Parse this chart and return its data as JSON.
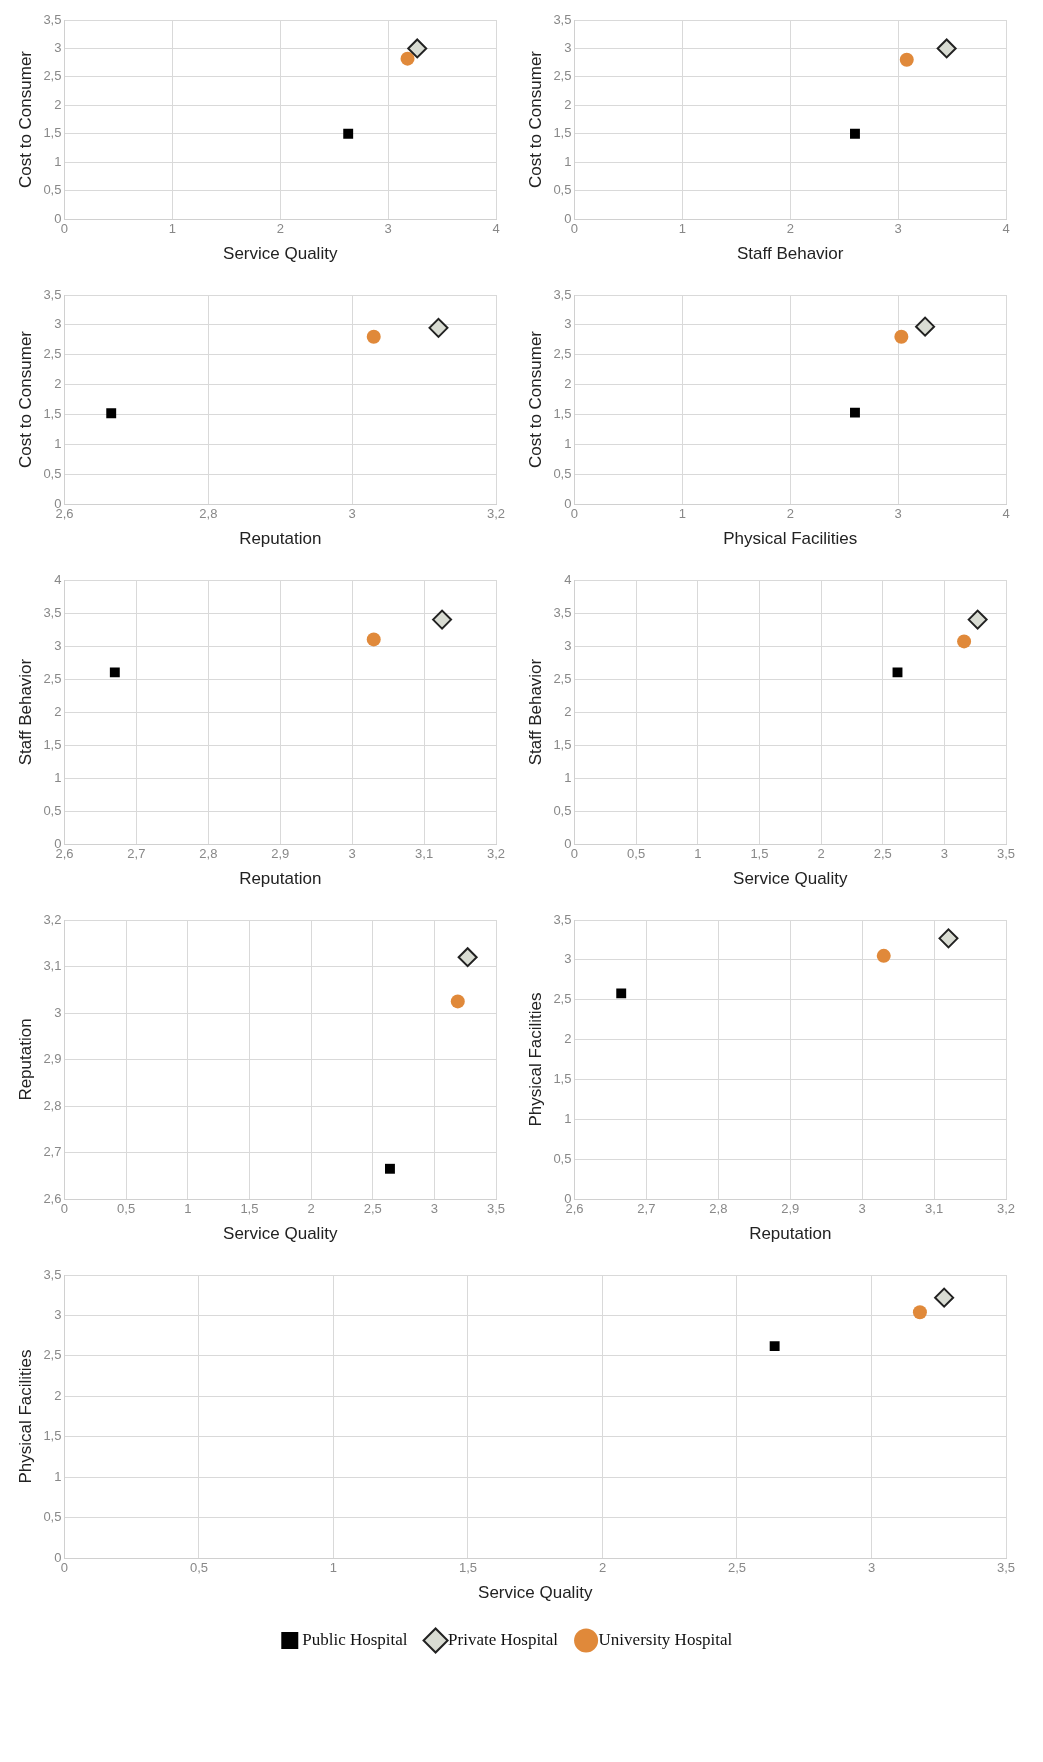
{
  "chart_data": [
    {
      "type": "scatter",
      "xlabel": "Service Quality",
      "ylabel": "Cost to Consumer",
      "xlim": [
        0,
        4
      ],
      "xticks": [
        0,
        1,
        2,
        3,
        4
      ],
      "ylim": [
        0,
        3.5
      ],
      "yticks": [
        0,
        {
          "value": 0.5,
          "label": "0,5"
        },
        1,
        {
          "value": 1.5,
          "label": "1,5"
        },
        2,
        {
          "value": 2.5,
          "label": "2,5"
        },
        3,
        {
          "value": 3.5,
          "label": "3,5"
        }
      ],
      "grid": true,
      "series": [
        {
          "color": "#000000",
          "marker": "square",
          "x": [
            2.63
          ],
          "values": [
            1.5
          ]
        },
        {
          "color": "#d9dcd3",
          "marker": "diamond",
          "x": [
            3.27
          ],
          "values": [
            3.0
          ]
        },
        {
          "color": "#e0893a",
          "marker": "circle",
          "x": [
            3.18
          ],
          "values": [
            2.82
          ]
        }
      ]
    },
    {
      "type": "scatter",
      "xlabel": "Staff Behavior",
      "ylabel": "Cost to Consumer",
      "xlim": [
        0,
        4
      ],
      "xticks": [
        0,
        1,
        2,
        3,
        4
      ],
      "ylim": [
        0,
        3.5
      ],
      "yticks": [
        0,
        {
          "value": 0.5,
          "label": "0,5"
        },
        1,
        {
          "value": 1.5,
          "label": "1,5"
        },
        2,
        {
          "value": 2.5,
          "label": "2,5"
        },
        3,
        {
          "value": 3.5,
          "label": "3,5"
        }
      ],
      "grid": true,
      "series": [
        {
          "color": "#000000",
          "marker": "square",
          "x": [
            2.6
          ],
          "values": [
            1.5
          ]
        },
        {
          "color": "#d9dcd3",
          "marker": "diamond",
          "x": [
            3.45
          ],
          "values": [
            3.0
          ]
        },
        {
          "color": "#e0893a",
          "marker": "circle",
          "x": [
            3.08
          ],
          "values": [
            2.8
          ]
        }
      ]
    },
    {
      "type": "scatter",
      "xlabel": "Reputation",
      "ylabel": "Cost to Consumer",
      "xlim": [
        2.6,
        3.2
      ],
      "xticks": [
        {
          "value": 2.6,
          "label": "2,6"
        },
        {
          "value": 2.8,
          "label": "2,8"
        },
        3,
        {
          "value": 3.2,
          "label": "3,2"
        }
      ],
      "ylim": [
        0,
        3.5
      ],
      "yticks": [
        0,
        {
          "value": 0.5,
          "label": "0,5"
        },
        1,
        {
          "value": 1.5,
          "label": "1,5"
        },
        2,
        {
          "value": 2.5,
          "label": "2,5"
        },
        3,
        {
          "value": 3.5,
          "label": "3,5"
        }
      ],
      "grid": true,
      "series": [
        {
          "color": "#000000",
          "marker": "square",
          "x": [
            2.665
          ],
          "values": [
            1.52
          ]
        },
        {
          "color": "#d9dcd3",
          "marker": "diamond",
          "x": [
            3.12
          ],
          "values": [
            2.95
          ]
        },
        {
          "color": "#e0893a",
          "marker": "circle",
          "x": [
            3.03
          ],
          "values": [
            2.8
          ]
        }
      ]
    },
    {
      "type": "scatter",
      "xlabel": "Physical Facilities",
      "ylabel": "Cost to Consumer",
      "xlim": [
        0,
        4
      ],
      "xticks": [
        0,
        1,
        2,
        3,
        4
      ],
      "ylim": [
        0,
        3.5
      ],
      "yticks": [
        0,
        {
          "value": 0.5,
          "label": "0,5"
        },
        1,
        {
          "value": 1.5,
          "label": "1,5"
        },
        2,
        {
          "value": 2.5,
          "label": "2,5"
        },
        3,
        {
          "value": 3.5,
          "label": "3,5"
        }
      ],
      "grid": true,
      "series": [
        {
          "color": "#000000",
          "marker": "square",
          "x": [
            2.6
          ],
          "values": [
            1.53
          ]
        },
        {
          "color": "#d9dcd3",
          "marker": "diamond",
          "x": [
            3.25
          ],
          "values": [
            2.97
          ]
        },
        {
          "color": "#e0893a",
          "marker": "circle",
          "x": [
            3.03
          ],
          "values": [
            2.8
          ]
        }
      ]
    },
    {
      "type": "scatter",
      "xlabel": "Reputation",
      "ylabel": "Staff Behavior",
      "xlim": [
        2.6,
        3.2
      ],
      "xticks": [
        {
          "value": 2.6,
          "label": "2,6"
        },
        {
          "value": 2.7,
          "label": "2,7"
        },
        {
          "value": 2.8,
          "label": "2,8"
        },
        {
          "value": 2.9,
          "label": "2,9"
        },
        3,
        {
          "value": 3.1,
          "label": "3,1"
        },
        {
          "value": 3.2,
          "label": "3,2"
        }
      ],
      "ylim": [
        0,
        4
      ],
      "yticks": [
        0,
        {
          "value": 0.5,
          "label": "0,5"
        },
        1,
        {
          "value": 1.5,
          "label": "1,5"
        },
        2,
        {
          "value": 2.5,
          "label": "2,5"
        },
        3,
        {
          "value": 3.5,
          "label": "3,5"
        },
        4
      ],
      "grid": true,
      "series": [
        {
          "color": "#000000",
          "marker": "square",
          "x": [
            2.67
          ],
          "values": [
            2.6
          ]
        },
        {
          "color": "#d9dcd3",
          "marker": "diamond",
          "x": [
            3.125
          ],
          "values": [
            3.4
          ]
        },
        {
          "color": "#e0893a",
          "marker": "circle",
          "x": [
            3.03
          ],
          "values": [
            3.1
          ]
        }
      ]
    },
    {
      "type": "scatter",
      "xlabel": "Service Quality",
      "ylabel": "Staff Behavior",
      "xlim": [
        0,
        3.5
      ],
      "xticks": [
        0,
        {
          "value": 0.5,
          "label": "0,5"
        },
        1,
        {
          "value": 1.5,
          "label": "1,5"
        },
        2,
        {
          "value": 2.5,
          "label": "2,5"
        },
        3,
        {
          "value": 3.5,
          "label": "3,5"
        }
      ],
      "ylim": [
        0,
        4
      ],
      "yticks": [
        0,
        {
          "value": 0.5,
          "label": "0,5"
        },
        1,
        {
          "value": 1.5,
          "label": "1,5"
        },
        2,
        {
          "value": 2.5,
          "label": "2,5"
        },
        3,
        {
          "value": 3.5,
          "label": "3,5"
        },
        4
      ],
      "grid": true,
      "series": [
        {
          "color": "#000000",
          "marker": "square",
          "x": [
            2.62
          ],
          "values": [
            2.6
          ]
        },
        {
          "color": "#d9dcd3",
          "marker": "diamond",
          "x": [
            3.27
          ],
          "values": [
            3.4
          ]
        },
        {
          "color": "#e0893a",
          "marker": "circle",
          "x": [
            3.16
          ],
          "values": [
            3.07
          ]
        }
      ]
    },
    {
      "type": "scatter",
      "xlabel": "Service Quality",
      "ylabel": "Reputation",
      "xlim": [
        0,
        3.5
      ],
      "xticks": [
        0,
        {
          "value": 0.5,
          "label": "0,5"
        },
        1,
        {
          "value": 1.5,
          "label": "1,5"
        },
        2,
        {
          "value": 2.5,
          "label": "2,5"
        },
        3,
        {
          "value": 3.5,
          "label": "3,5"
        }
      ],
      "ylim": [
        2.6,
        3.2
      ],
      "yticks": [
        {
          "value": 2.6,
          "label": "2,6"
        },
        {
          "value": 2.7,
          "label": "2,7"
        },
        {
          "value": 2.8,
          "label": "2,8"
        },
        {
          "value": 2.9,
          "label": "2,9"
        },
        3,
        {
          "value": 3.1,
          "label": "3,1"
        },
        {
          "value": 3.2,
          "label": "3,2"
        }
      ],
      "grid": true,
      "series": [
        {
          "color": "#000000",
          "marker": "square",
          "x": [
            2.64
          ],
          "values": [
            2.665
          ]
        },
        {
          "color": "#d9dcd3",
          "marker": "diamond",
          "x": [
            3.27
          ],
          "values": [
            3.12
          ]
        },
        {
          "color": "#e0893a",
          "marker": "circle",
          "x": [
            3.19
          ],
          "values": [
            3.025
          ]
        }
      ]
    },
    {
      "type": "scatter",
      "xlabel": "Reputation",
      "ylabel": "Physical Facilities",
      "xlim": [
        2.6,
        3.2
      ],
      "xticks": [
        {
          "value": 2.6,
          "label": "2,6"
        },
        {
          "value": 2.7,
          "label": "2,7"
        },
        {
          "value": 2.8,
          "label": "2,8"
        },
        {
          "value": 2.9,
          "label": "2,9"
        },
        3,
        {
          "value": 3.1,
          "label": "3,1"
        },
        {
          "value": 3.2,
          "label": "3,2"
        }
      ],
      "ylim": [
        0,
        3.5
      ],
      "yticks": [
        0,
        {
          "value": 0.5,
          "label": "0,5"
        },
        1,
        {
          "value": 1.5,
          "label": "1,5"
        },
        2,
        {
          "value": 2.5,
          "label": "2,5"
        },
        3,
        {
          "value": 3.5,
          "label": "3,5"
        }
      ],
      "grid": true,
      "series": [
        {
          "color": "#000000",
          "marker": "square",
          "x": [
            2.665
          ],
          "values": [
            2.58
          ]
        },
        {
          "color": "#d9dcd3",
          "marker": "diamond",
          "x": [
            3.12
          ],
          "values": [
            3.27
          ]
        },
        {
          "color": "#e0893a",
          "marker": "circle",
          "x": [
            3.03
          ],
          "values": [
            3.05
          ]
        }
      ]
    },
    {
      "type": "scatter",
      "xlabel": "Service Quality",
      "ylabel": "Physical Facilities",
      "xlim": [
        0,
        3.5
      ],
      "xticks": [
        0,
        {
          "value": 0.5,
          "label": "0,5"
        },
        1,
        {
          "value": 1.5,
          "label": "1,5"
        },
        2,
        {
          "value": 2.5,
          "label": "2,5"
        },
        3,
        {
          "value": 3.5,
          "label": "3,5"
        }
      ],
      "ylim": [
        0,
        3.5
      ],
      "yticks": [
        0,
        {
          "value": 0.5,
          "label": "0,5"
        },
        1,
        {
          "value": 1.5,
          "label": "1,5"
        },
        2,
        {
          "value": 2.5,
          "label": "2,5"
        },
        3,
        {
          "value": 3.5,
          "label": "3,5"
        }
      ],
      "grid": true,
      "legend": "bottom",
      "series": [
        {
          "name": "Public Hospital",
          "color": "#000000",
          "marker": "square",
          "x": [
            2.64
          ],
          "values": [
            2.62
          ]
        },
        {
          "name": "Private Hospital",
          "color": "#d9dcd3",
          "marker": "diamond",
          "x": [
            3.27
          ],
          "values": [
            3.22
          ]
        },
        {
          "name": "University Hospital",
          "color": "#e0893a",
          "marker": "circle",
          "x": [
            3.18
          ],
          "values": [
            3.04
          ]
        }
      ]
    }
  ]
}
